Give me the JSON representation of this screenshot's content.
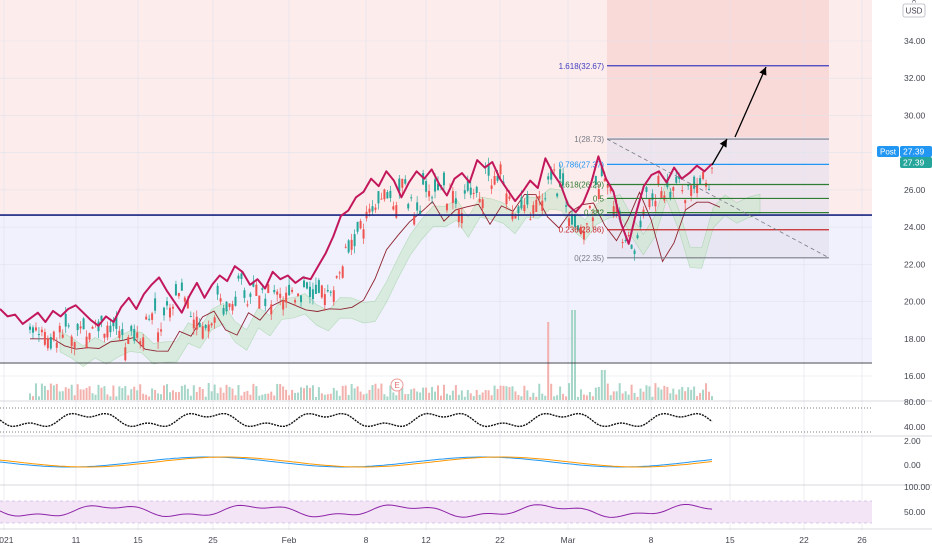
{
  "currency": "USD",
  "corner_tool": "A",
  "colors": {
    "price_line": "#c2185b",
    "candle_up": "#26a69a",
    "candle_down": "#ef5350",
    "blue_hline": "#1a237e",
    "fib_level_1618": "#3f3fbf",
    "fib_level_0786": "#2196f3",
    "fib_level_0618": "#2e7d32",
    "fib_level_0236": "#c62828",
    "fib_gray": "#787b86",
    "post_tag": "#2196f3",
    "rsi_fill": "#f3e5f5"
  },
  "chart_data": {
    "type": "line",
    "price_axis": {
      "ticks": [
        "34.00",
        "32.00",
        "30.00",
        "28.00",
        "26.00",
        "24.00",
        "22.00",
        "20.00",
        "18.00",
        "16.00"
      ],
      "ylim": [
        15.2,
        35.6
      ]
    },
    "time_axis": {
      "labels": [
        "2021",
        "11",
        "15",
        "25",
        "Feb",
        "8",
        "12",
        "22",
        "Mar",
        "8",
        "15",
        "22",
        "26"
      ]
    },
    "price_tags": {
      "post_label": "Post",
      "post_value": "27.39",
      "last_value": "27.39"
    },
    "horizontal_lines": [
      24.65,
      16.7
    ],
    "fibonacci": {
      "levels": [
        {
          "label": "1.618(32.67)",
          "value": 32.67
        },
        {
          "label": "1(28.73)",
          "value": 28.73
        },
        {
          "label": "0.786(27.37)",
          "value": 27.37
        },
        {
          "label": "0.618(26.29)",
          "value": 26.29
        },
        {
          "label": "0.5",
          "value": 25.54
        },
        {
          "label": "0.382",
          "value": 24.78
        },
        {
          "label": "0.236(23.86)",
          "value": 23.86
        },
        {
          "label": "0(22.35)",
          "value": 22.35
        }
      ]
    },
    "series": [
      {
        "values": [
          19.6,
          19.2,
          19.3,
          18.8,
          19.1,
          19.4,
          18.9,
          19.5,
          19.2,
          19.6,
          19.8,
          19.4,
          19.0,
          18.7,
          19.2,
          18.9,
          19.7,
          20.2,
          19.6,
          20.4,
          20.9,
          21.3,
          20.6,
          20.0,
          19.4,
          20.3,
          21.0,
          20.2,
          20.9,
          21.4,
          21.1,
          21.9,
          21.6,
          20.9,
          21.2,
          20.7,
          21.6,
          21.2,
          21.4,
          21.0,
          21.3,
          21.2,
          21.9,
          22.6,
          23.5,
          24.6,
          24.9,
          25.6,
          25.9,
          26.6,
          26.2,
          27.0,
          26.5,
          25.6,
          26.4,
          27.0,
          26.6,
          27.1,
          26.3,
          25.7,
          26.6,
          26.9,
          26.4,
          27.6,
          27.2,
          27.5,
          26.6,
          26.0,
          25.4,
          25.9,
          26.5,
          26.1,
          27.7,
          26.9,
          26.3,
          25.2,
          24.8,
          25.3,
          26.3,
          27.8,
          26.6,
          25.9,
          24.2,
          23.1,
          24.8,
          26.2,
          26.8,
          27.0,
          26.4,
          27.2,
          26.6,
          26.9,
          27.3,
          27.0,
          27.4
        ]
      }
    ],
    "oscillator_1": {
      "ticks": [
        "80.00",
        "40.00"
      ]
    },
    "oscillator_2": {
      "ticks": [
        "2.00",
        "0.00"
      ]
    },
    "oscillator_3": {
      "ticks": [
        "100.00",
        "50.00"
      ]
    }
  }
}
